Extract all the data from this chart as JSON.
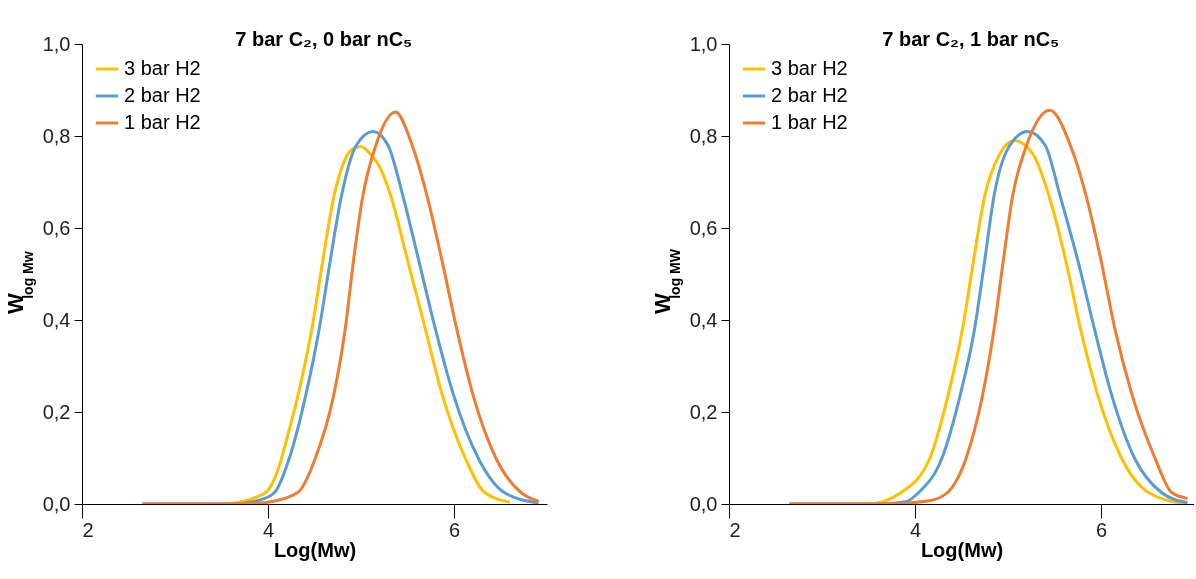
{
  "chart_data": [
    {
      "type": "line",
      "title": "7 bar C₂, 0 bar nC₅",
      "xlabel": "Log(Mw)",
      "ylabel": "W$_{log Mw}$",
      "xlim": [
        2,
        7
      ],
      "ylim": [
        0,
        1
      ],
      "xticks": [
        2,
        4,
        6
      ],
      "yticks": [
        {
          "value": 0,
          "label": "0,0"
        },
        {
          "value": 0.2,
          "label": "0,2"
        },
        {
          "value": 0.4,
          "label": "0,4"
        },
        {
          "value": 0.6,
          "label": "0,6"
        },
        {
          "value": 0.8,
          "label": "0,8"
        },
        {
          "value": 1,
          "label": "1,0"
        }
      ],
      "grid": false,
      "legend": "top left",
      "marker": "none",
      "line_style": "solid",
      "series": [
        {
          "name": "3 bar H2",
          "color": "#ffc000",
          "x": [
            2.65,
            3.5,
            3.86,
            4.0,
            4.1,
            4.2,
            4.35,
            4.48,
            4.59,
            4.71,
            4.81,
            4.9,
            5.0,
            5.08,
            5.18,
            5.32,
            5.5,
            5.68,
            5.87,
            6.12,
            6.33,
            6.6
          ],
          "values": [
            0,
            0,
            0.014,
            0.03,
            0.07,
            0.14,
            0.26,
            0.39,
            0.53,
            0.67,
            0.74,
            0.77,
            0.777,
            0.765,
            0.74,
            0.67,
            0.53,
            0.39,
            0.24,
            0.1,
            0.025,
            0.004
          ]
        },
        {
          "name": "2 bar H2",
          "color": "#5b9bd5",
          "x": [
            2.65,
            3.6,
            3.9,
            4.07,
            4.23,
            4.41,
            4.55,
            4.67,
            4.79,
            4.95,
            5.13,
            5.29,
            5.45,
            5.62,
            5.8,
            5.99,
            6.26,
            6.54,
            6.91
          ],
          "values": [
            0,
            0,
            0.008,
            0.025,
            0.1,
            0.24,
            0.38,
            0.53,
            0.67,
            0.78,
            0.81,
            0.78,
            0.67,
            0.53,
            0.38,
            0.24,
            0.1,
            0.025,
            0.002
          ]
        },
        {
          "name": "1 bar H2",
          "color": "#ed7d31",
          "x": [
            2.65,
            3.6,
            3.85,
            4.0,
            4.32,
            4.51,
            4.71,
            4.83,
            4.92,
            5.02,
            5.16,
            5.37,
            5.55,
            5.71,
            5.87,
            6.03,
            6.2,
            6.45,
            6.72,
            6.91
          ],
          "values": [
            0,
            0,
            0.002,
            0.004,
            0.025,
            0.1,
            0.24,
            0.38,
            0.53,
            0.67,
            0.78,
            0.852,
            0.78,
            0.67,
            0.53,
            0.38,
            0.24,
            0.1,
            0.025,
            0.006
          ]
        }
      ]
    },
    {
      "type": "line",
      "title": "7 bar C₂, 1 bar nC₅",
      "xlabel": "Log(Mw)",
      "ylabel": "W$_{log MW}$",
      "xlim": [
        2,
        7
      ],
      "ylim": [
        0,
        1
      ],
      "xticks": [
        2,
        4,
        6
      ],
      "yticks": [
        {
          "value": 0,
          "label": "0,0"
        },
        {
          "value": 0.2,
          "label": "0,2"
        },
        {
          "value": 0.4,
          "label": "0,4"
        },
        {
          "value": 0.6,
          "label": "0,6"
        },
        {
          "value": 0.8,
          "label": "0,8"
        },
        {
          "value": 1,
          "label": "1,0"
        }
      ],
      "grid": false,
      "legend": "top left",
      "marker": "none",
      "line_style": "solid",
      "series": [
        {
          "name": "3 bar H2",
          "color": "#ffc000",
          "x": [
            2.65,
            3.5,
            3.85,
            4.16,
            4.36,
            4.51,
            4.63,
            4.75,
            4.91,
            5.07,
            5.27,
            5.44,
            5.62,
            5.78,
            5.96,
            6.22,
            6.51,
            6.91
          ],
          "values": [
            0,
            0,
            0.025,
            0.1,
            0.24,
            0.38,
            0.53,
            0.67,
            0.76,
            0.79,
            0.76,
            0.67,
            0.53,
            0.38,
            0.24,
            0.1,
            0.025,
            0
          ]
        },
        {
          "name": "2 bar H2",
          "color": "#5b9bd5",
          "x": [
            2.65,
            3.6,
            3.9,
            4.04,
            4.29,
            4.49,
            4.64,
            4.75,
            4.85,
            5.02,
            5.21,
            5.4,
            5.56,
            5.75,
            5.93,
            6.11,
            6.36,
            6.65,
            6.93
          ],
          "values": [
            0,
            0,
            0.005,
            0.025,
            0.1,
            0.24,
            0.38,
            0.53,
            0.67,
            0.78,
            0.81,
            0.78,
            0.67,
            0.53,
            0.38,
            0.24,
            0.1,
            0.025,
            0.003
          ]
        },
        {
          "name": "1 bar H2",
          "color": "#ed7d31",
          "x": [
            2.65,
            3.7,
            4.15,
            4.35,
            4.55,
            4.73,
            4.85,
            4.95,
            5.05,
            5.2,
            5.45,
            5.67,
            5.84,
            6.0,
            6.15,
            6.33,
            6.58,
            6.76,
            6.93
          ],
          "values": [
            0,
            0,
            0.007,
            0.025,
            0.1,
            0.24,
            0.38,
            0.53,
            0.67,
            0.78,
            0.856,
            0.78,
            0.67,
            0.53,
            0.38,
            0.24,
            0.1,
            0.025,
            0.012
          ]
        }
      ]
    }
  ]
}
